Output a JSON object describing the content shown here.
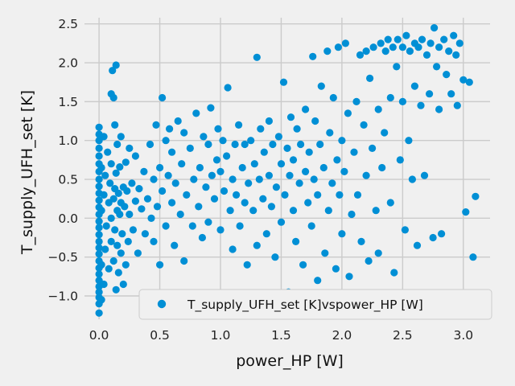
{
  "chart_data": {
    "type": "scatter",
    "title": "",
    "xlabel": "power_HP [W]",
    "ylabel": "T_supply_UFH_set [K]",
    "xlim": [
      -0.12,
      3.22
    ],
    "ylim": [
      -1.3,
      2.58
    ],
    "x_ticks": [
      "0.0",
      "0.5",
      "1.0",
      "1.5",
      "2.0",
      "2.5",
      "3.0"
    ],
    "x_tick_values": [
      0.0,
      0.5,
      1.0,
      1.5,
      2.0,
      2.5,
      3.0
    ],
    "y_ticks": [
      "−1.0",
      "−0.5",
      "0.0",
      "0.5",
      "1.0",
      "1.5",
      "2.0",
      "2.5"
    ],
    "y_tick_values": [
      -1.0,
      -0.5,
      0.0,
      0.5,
      1.0,
      1.5,
      2.0,
      2.5
    ],
    "grid": true,
    "legend_position": "lower-right",
    "colors": {
      "series": "#008fd5",
      "background": "#f0f0f0",
      "grid": "#cbcbcb"
    },
    "series": [
      {
        "name": "T_supply_UFH_set [K]vspower_HP [W]",
        "points": [
          [
            0.0,
            -1.22
          ],
          [
            0.0,
            -1.1
          ],
          [
            0.0,
            -1.02
          ],
          [
            0.0,
            -0.95
          ],
          [
            0.0,
            -0.88
          ],
          [
            0.0,
            -0.8
          ],
          [
            0.0,
            -0.72
          ],
          [
            0.0,
            -0.64
          ],
          [
            0.0,
            -0.55
          ],
          [
            0.0,
            -0.46
          ],
          [
            0.0,
            -0.38
          ],
          [
            0.0,
            -0.3
          ],
          [
            0.0,
            -0.21
          ],
          [
            0.0,
            -0.12
          ],
          [
            0.0,
            -0.04
          ],
          [
            0.0,
            0.05
          ],
          [
            0.0,
            0.14
          ],
          [
            0.0,
            0.23
          ],
          [
            0.0,
            0.32
          ],
          [
            0.0,
            0.41
          ],
          [
            0.0,
            0.5
          ],
          [
            0.0,
            0.6
          ],
          [
            0.0,
            0.7
          ],
          [
            0.0,
            0.8
          ],
          [
            0.0,
            0.9
          ],
          [
            0.0,
            1.0
          ],
          [
            0.0,
            1.08
          ],
          [
            0.0,
            1.17
          ],
          [
            0.02,
            -1.05
          ],
          [
            0.02,
            -0.6
          ],
          [
            0.02,
            0.1
          ],
          [
            0.02,
            0.65
          ],
          [
            0.04,
            -0.85
          ],
          [
            0.04,
            0.3
          ],
          [
            0.04,
            1.05
          ],
          [
            0.05,
            -0.4
          ],
          [
            0.05,
            0.55
          ],
          [
            0.06,
            -0.1
          ],
          [
            0.07,
            0.85
          ],
          [
            0.08,
            -0.65
          ],
          [
            0.08,
            0.2
          ],
          [
            0.09,
            0.45
          ],
          [
            0.1,
            -0.3
          ],
          [
            0.1,
            0.0
          ],
          [
            0.1,
            0.7
          ],
          [
            0.1,
            1.6
          ],
          [
            0.11,
            1.9
          ],
          [
            0.12,
            -0.55
          ],
          [
            0.12,
            0.25
          ],
          [
            0.12,
            1.55
          ],
          [
            0.13,
            -0.15
          ],
          [
            0.13,
            0.38
          ],
          [
            0.13,
            1.2
          ],
          [
            0.14,
            -0.92
          ],
          [
            0.14,
            0.58
          ],
          [
            0.14,
            1.97
          ],
          [
            0.15,
            -0.35
          ],
          [
            0.15,
            0.1
          ],
          [
            0.15,
            0.95
          ],
          [
            0.16,
            -0.7
          ],
          [
            0.16,
            0.32
          ],
          [
            0.17,
            0.05
          ],
          [
            0.17,
            0.66
          ],
          [
            0.18,
            -0.45
          ],
          [
            0.18,
            0.2
          ],
          [
            0.18,
            1.05
          ],
          [
            0.19,
            -0.2
          ],
          [
            0.2,
            0.4
          ],
          [
            0.2,
            -0.85
          ],
          [
            0.21,
            0.15
          ],
          [
            0.22,
            0.72
          ],
          [
            0.22,
            -0.6
          ],
          [
            0.23,
            0.35
          ],
          [
            0.24,
            -0.3
          ],
          [
            0.25,
            0.05
          ],
          [
            0.25,
            0.9
          ],
          [
            0.27,
            0.45
          ],
          [
            0.28,
            -0.15
          ],
          [
            0.3,
            0.22
          ],
          [
            0.3,
            0.8
          ],
          [
            0.32,
            -0.45
          ],
          [
            0.33,
            0.38
          ],
          [
            0.35,
            0.12
          ],
          [
            0.37,
            0.6
          ],
          [
            0.38,
            -0.2
          ],
          [
            0.4,
            0.25
          ],
          [
            0.42,
            0.95
          ],
          [
            0.43,
            0.0
          ],
          [
            0.45,
            0.5
          ],
          [
            0.45,
            -0.3
          ],
          [
            0.47,
            1.2
          ],
          [
            0.48,
            0.15
          ],
          [
            0.5,
            0.65
          ],
          [
            0.5,
            -0.6
          ],
          [
            0.52,
            1.55
          ],
          [
            0.52,
            0.35
          ],
          [
            0.55,
            1.0
          ],
          [
            0.55,
            -0.1
          ],
          [
            0.57,
            0.55
          ],
          [
            0.58,
            1.15
          ],
          [
            0.6,
            0.2
          ],
          [
            0.6,
            0.85
          ],
          [
            0.62,
            -0.35
          ],
          [
            0.63,
            0.45
          ],
          [
            0.65,
            1.25
          ],
          [
            0.67,
            0.05
          ],
          [
            0.68,
            0.7
          ],
          [
            0.7,
            -0.55
          ],
          [
            0.7,
            1.1
          ],
          [
            0.72,
            0.3
          ],
          [
            0.75,
            0.9
          ],
          [
            0.77,
            -0.1
          ],
          [
            0.78,
            0.5
          ],
          [
            0.8,
            1.35
          ],
          [
            0.82,
            0.15
          ],
          [
            0.83,
            0.65
          ],
          [
            0.85,
            -0.25
          ],
          [
            0.86,
            1.05
          ],
          [
            0.88,
            0.4
          ],
          [
            0.9,
            0.95
          ],
          [
            0.9,
            -0.05
          ],
          [
            0.92,
            1.42
          ],
          [
            0.93,
            0.55
          ],
          [
            0.95,
            0.25
          ],
          [
            0.97,
            0.75
          ],
          [
            0.98,
            1.15
          ],
          [
            1.0,
            -0.15
          ],
          [
            1.0,
            0.6
          ],
          [
            1.02,
            1.0
          ],
          [
            1.03,
            0.35
          ],
          [
            1.05,
            0.8
          ],
          [
            1.06,
            1.68
          ],
          [
            1.08,
            0.1
          ],
          [
            1.1,
            0.5
          ],
          [
            1.1,
            -0.4
          ],
          [
            1.12,
            0.95
          ],
          [
            1.13,
            0.3
          ],
          [
            1.15,
            1.2
          ],
          [
            1.16,
            -0.1
          ],
          [
            1.18,
            0.65
          ],
          [
            1.2,
            0.2
          ],
          [
            1.2,
            0.95
          ],
          [
            1.22,
            -0.6
          ],
          [
            1.23,
            0.45
          ],
          [
            1.25,
            1.0
          ],
          [
            1.27,
            0.1
          ],
          [
            1.28,
            0.7
          ],
          [
            1.3,
            -0.35
          ],
          [
            1.3,
            2.07
          ],
          [
            1.32,
            0.5
          ],
          [
            1.33,
            1.15
          ],
          [
            1.35,
            0.25
          ],
          [
            1.36,
            0.85
          ],
          [
            1.38,
            -0.2
          ],
          [
            1.4,
            0.55
          ],
          [
            1.4,
            1.25
          ],
          [
            1.42,
            0.15
          ],
          [
            1.43,
            0.95
          ],
          [
            1.45,
            -0.5
          ],
          [
            1.46,
            0.4
          ],
          [
            1.48,
            1.05
          ],
          [
            1.5,
            0.7
          ],
          [
            1.5,
            -0.05
          ],
          [
            1.52,
            1.75
          ],
          [
            1.53,
            0.3
          ],
          [
            1.55,
            0.9
          ],
          [
            1.56,
            -0.95
          ],
          [
            1.57,
            0.55
          ],
          [
            1.58,
            1.3
          ],
          [
            1.6,
            0.1
          ],
          [
            1.6,
            0.75
          ],
          [
            1.62,
            -0.3
          ],
          [
            1.63,
            1.15
          ],
          [
            1.65,
            0.45
          ],
          [
            1.66,
            0.95
          ],
          [
            1.68,
            -0.6
          ],
          [
            1.7,
            0.6
          ],
          [
            1.7,
            1.4
          ],
          [
            1.72,
            0.2
          ],
          [
            1.73,
            0.85
          ],
          [
            1.75,
            -0.1
          ],
          [
            1.76,
            2.08
          ],
          [
            1.77,
            0.5
          ],
          [
            1.78,
            1.25
          ],
          [
            1.8,
            -0.8
          ],
          [
            1.8,
            0.3
          ],
          [
            1.82,
            0.95
          ],
          [
            1.83,
            1.7
          ],
          [
            1.85,
            0.65
          ],
          [
            1.86,
            -0.45
          ],
          [
            1.88,
            2.15
          ],
          [
            1.89,
            0.1
          ],
          [
            1.9,
            1.1
          ],
          [
            1.92,
            0.45
          ],
          [
            1.93,
            1.55
          ],
          [
            1.95,
            -0.65
          ],
          [
            1.96,
            0.75
          ],
          [
            1.97,
            2.2
          ],
          [
            1.98,
            0.3
          ],
          [
            2.0,
            1.0
          ],
          [
            2.0,
            -0.2
          ],
          [
            2.02,
            0.6
          ],
          [
            2.03,
            2.25
          ],
          [
            2.05,
            1.35
          ],
          [
            2.06,
            -0.75
          ],
          [
            2.08,
            0.05
          ],
          [
            2.1,
            0.85
          ],
          [
            2.12,
            1.5
          ],
          [
            2.13,
            0.3
          ],
          [
            2.15,
            2.1
          ],
          [
            2.16,
            -0.3
          ],
          [
            2.18,
            1.2
          ],
          [
            2.2,
            0.55
          ],
          [
            2.2,
            2.15
          ],
          [
            2.22,
            -0.55
          ],
          [
            2.23,
            1.8
          ],
          [
            2.25,
            0.9
          ],
          [
            2.26,
            2.2
          ],
          [
            2.28,
            0.1
          ],
          [
            2.3,
            1.4
          ],
          [
            2.3,
            -0.45
          ],
          [
            2.32,
            2.25
          ],
          [
            2.33,
            0.65
          ],
          [
            2.35,
            1.1
          ],
          [
            2.36,
            2.15
          ],
          [
            2.38,
            2.3
          ],
          [
            2.4,
            1.55
          ],
          [
            2.4,
            0.2
          ],
          [
            2.42,
            2.2
          ],
          [
            2.43,
            -0.7
          ],
          [
            2.45,
            1.95
          ],
          [
            2.46,
            2.3
          ],
          [
            2.48,
            0.75
          ],
          [
            2.5,
            2.2
          ],
          [
            2.5,
            1.5
          ],
          [
            2.52,
            -0.15
          ],
          [
            2.53,
            2.35
          ],
          [
            2.55,
            1.0
          ],
          [
            2.56,
            2.15
          ],
          [
            2.58,
            0.5
          ],
          [
            2.6,
            2.25
          ],
          [
            2.6,
            1.7
          ],
          [
            2.62,
            -0.35
          ],
          [
            2.63,
            2.2
          ],
          [
            2.65,
            1.45
          ],
          [
            2.66,
            2.3
          ],
          [
            2.68,
            0.55
          ],
          [
            2.7,
            2.1
          ],
          [
            2.72,
            1.6
          ],
          [
            2.73,
            2.25
          ],
          [
            2.75,
            -0.25
          ],
          [
            2.76,
            2.45
          ],
          [
            2.78,
            1.95
          ],
          [
            2.8,
            2.2
          ],
          [
            2.8,
            1.4
          ],
          [
            2.82,
            -0.2
          ],
          [
            2.84,
            2.3
          ],
          [
            2.86,
            1.85
          ],
          [
            2.88,
            2.15
          ],
          [
            2.9,
            1.6
          ],
          [
            2.92,
            2.35
          ],
          [
            2.94,
            2.1
          ],
          [
            2.95,
            1.45
          ],
          [
            2.97,
            2.25
          ],
          [
            3.0,
            1.78
          ],
          [
            3.02,
            0.08
          ],
          [
            3.05,
            1.75
          ],
          [
            3.08,
            -0.5
          ],
          [
            3.1,
            0.28
          ]
        ]
      }
    ]
  }
}
